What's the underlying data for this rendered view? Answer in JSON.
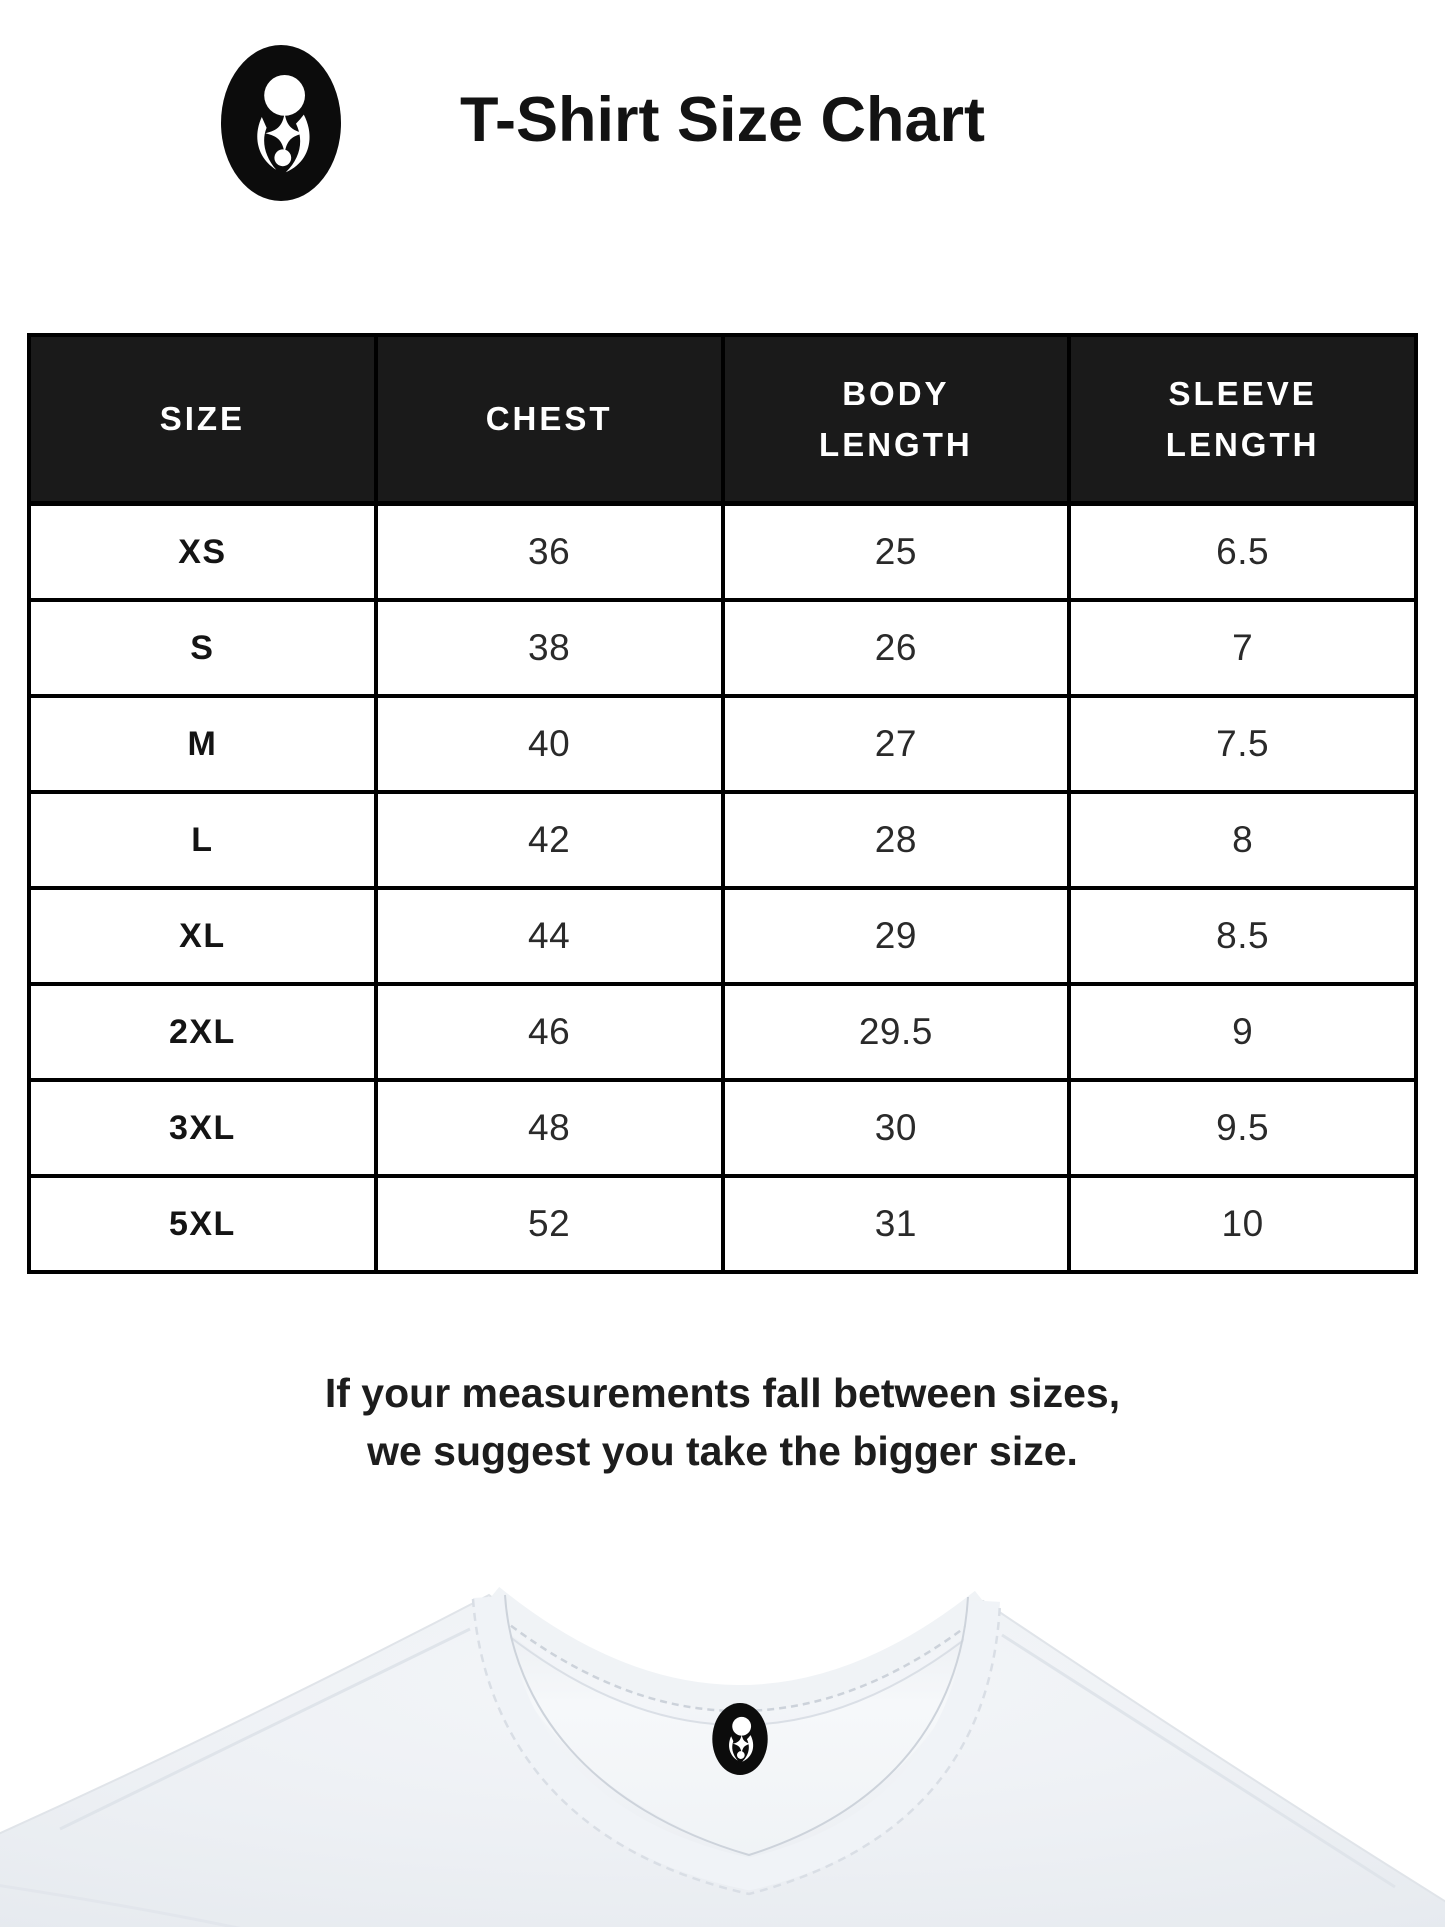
{
  "header": {
    "title": "T-Shirt Size Chart",
    "logo": "mother-and-child-logo"
  },
  "size_chart": {
    "columns": [
      "SIZE",
      "CHEST",
      "BODY LENGTH",
      "SLEEVE LENGTH"
    ],
    "rows": [
      {
        "size": "XS",
        "chest": "36",
        "body_length": "25",
        "sleeve_length": "6.5"
      },
      {
        "size": "S",
        "chest": "38",
        "body_length": "26",
        "sleeve_length": "7"
      },
      {
        "size": "M",
        "chest": "40",
        "body_length": "27",
        "sleeve_length": "7.5"
      },
      {
        "size": "L",
        "chest": "42",
        "body_length": "28",
        "sleeve_length": "8"
      },
      {
        "size": "XL",
        "chest": "44",
        "body_length": "29",
        "sleeve_length": "8.5"
      },
      {
        "size": "2XL",
        "chest": "46",
        "body_length": "29.5",
        "sleeve_length": "9"
      },
      {
        "size": "3XL",
        "chest": "48",
        "body_length": "30",
        "sleeve_length": "9.5"
      },
      {
        "size": "5XL",
        "chest": "52",
        "body_length": "31",
        "sleeve_length": "10"
      }
    ]
  },
  "note": {
    "line1": "If your measurements fall between sizes,",
    "line2": "we suggest you take the bigger size."
  },
  "colors": {
    "header_bg": "#1a1a1a",
    "table_border": "#000000",
    "text": "#1d1d1d",
    "shirt_fabric": "#eef1f5",
    "logo": "#0c0c0c"
  }
}
